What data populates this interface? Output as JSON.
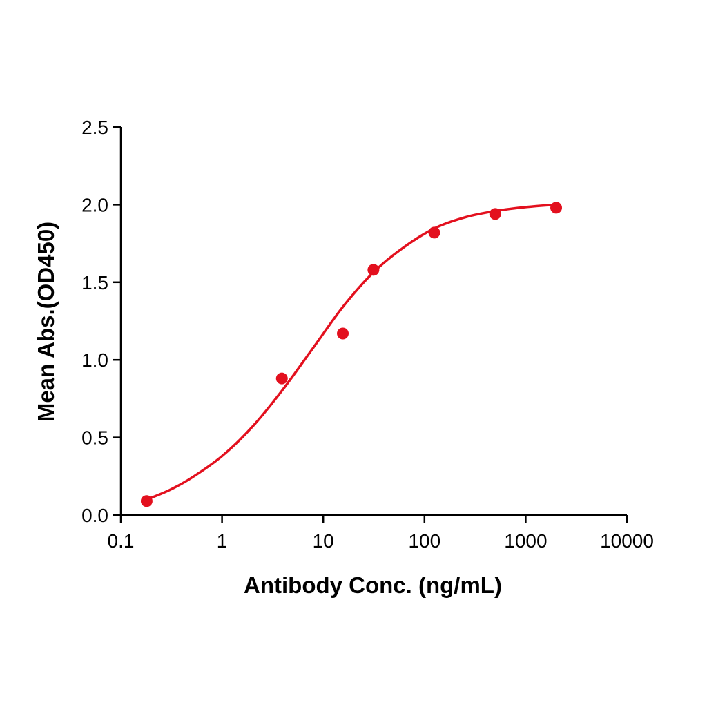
{
  "chart_data": {
    "type": "scatter",
    "title": "",
    "xlabel": "Antibody Conc. (ng/mL)",
    "ylabel": "Mean Abs.(OD450)",
    "x_scale": "log",
    "xlim": [
      0.1,
      10000
    ],
    "ylim": [
      0,
      2.5
    ],
    "x_ticks": [
      {
        "value": 0.1,
        "label": "0.1"
      },
      {
        "value": 1,
        "label": "1"
      },
      {
        "value": 10,
        "label": "10"
      },
      {
        "value": 100,
        "label": "100"
      },
      {
        "value": 1000,
        "label": "1000"
      },
      {
        "value": 10000,
        "label": "10000"
      }
    ],
    "y_ticks": [
      {
        "value": 0,
        "label": "0.0"
      },
      {
        "value": 0.5,
        "label": "0.5"
      },
      {
        "value": 1,
        "label": "1.0"
      },
      {
        "value": 1.5,
        "label": "1.5"
      },
      {
        "value": 2,
        "label": "2.0"
      },
      {
        "value": 2.5,
        "label": "2.5"
      }
    ],
    "grid": false,
    "legend": "none",
    "series": [
      {
        "color": "#e3101e",
        "points": [
          {
            "x": 0.18,
            "y": 0.09
          },
          {
            "x": 3.9,
            "y": 0.88
          },
          {
            "x": 15.6,
            "y": 1.17
          },
          {
            "x": 31.3,
            "y": 1.58
          },
          {
            "x": 125,
            "y": 1.82
          },
          {
            "x": 500,
            "y": 1.94
          },
          {
            "x": 2000,
            "y": 1.98
          }
        ],
        "fit_curve": {
          "x": [
            0.18,
            0.3,
            0.5,
            1,
            2,
            4,
            8,
            16,
            32,
            64,
            128,
            256,
            512,
            1024,
            2000
          ],
          "y": [
            0.1,
            0.16,
            0.24,
            0.38,
            0.57,
            0.81,
            1.08,
            1.35,
            1.57,
            1.73,
            1.85,
            1.92,
            1.96,
            1.985,
            2.0
          ]
        }
      }
    ]
  },
  "colors": {
    "axis": "#000000",
    "series": "#e3101e"
  }
}
